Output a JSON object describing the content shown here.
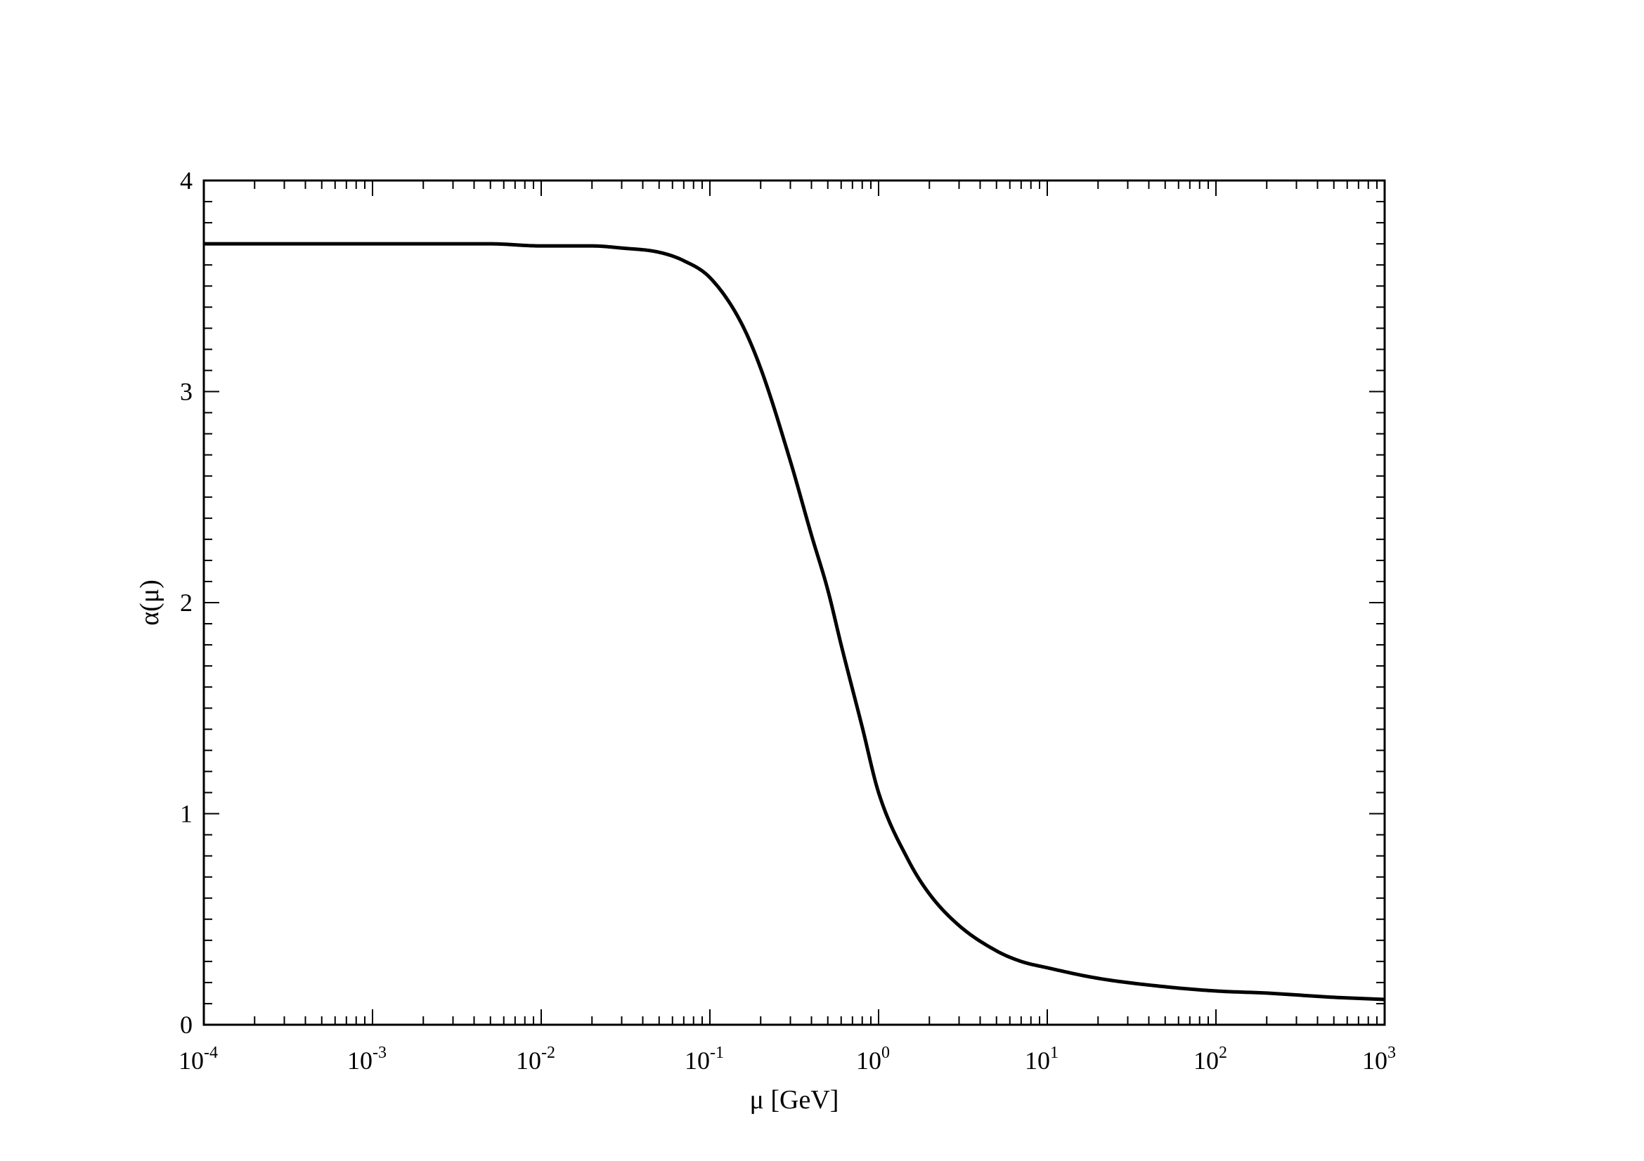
{
  "chart_data": {
    "type": "line",
    "title": "",
    "xlabel": "μ [GeV]",
    "ylabel": "α(μ)",
    "xscale": "log",
    "xlim": [
      0.0001,
      1000
    ],
    "ylim": [
      0,
      4
    ],
    "grid": false,
    "legend": "none",
    "x_ticks": [
      {
        "base": "10",
        "exp": "-4"
      },
      {
        "base": "10",
        "exp": "-3"
      },
      {
        "base": "10",
        "exp": "-2"
      },
      {
        "base": "10",
        "exp": "-1"
      },
      {
        "base": "10",
        "exp": "0"
      },
      {
        "base": "10",
        "exp": "1"
      },
      {
        "base": "10",
        "exp": "2"
      },
      {
        "base": "10",
        "exp": "3"
      }
    ],
    "y_ticks": [
      "0",
      "1",
      "2",
      "3",
      "4"
    ],
    "series": [
      {
        "color": "#000000",
        "x": [
          0.0001,
          0.001,
          0.005,
          0.01,
          0.02,
          0.03,
          0.05,
          0.07,
          0.1,
          0.15,
          0.2,
          0.3,
          0.4,
          0.5,
          0.6,
          0.8,
          1.0,
          1.5,
          2.0,
          3.0,
          5.0,
          7.0,
          10,
          20,
          50,
          100,
          200,
          500,
          1000
        ],
        "y": [
          3.7,
          3.7,
          3.7,
          3.69,
          3.69,
          3.68,
          3.66,
          3.62,
          3.54,
          3.34,
          3.11,
          2.67,
          2.32,
          2.06,
          1.8,
          1.41,
          1.1,
          0.78,
          0.62,
          0.47,
          0.35,
          0.3,
          0.27,
          0.22,
          0.18,
          0.16,
          0.15,
          0.13,
          0.12
        ]
      }
    ]
  }
}
